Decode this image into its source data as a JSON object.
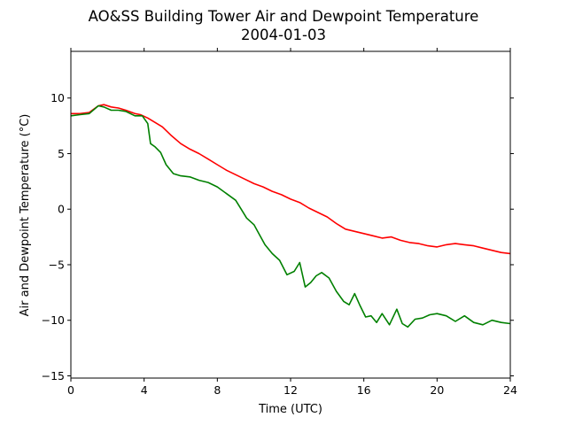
{
  "chart_data": {
    "type": "line",
    "title": "AO&SS Building Tower Air and Dewpoint Temperature",
    "subtitle": "2004-01-03",
    "xlabel": "Time (UTC)",
    "ylabel": "Air and Dewpoint Temperature (°C)",
    "xlim": [
      0,
      24
    ],
    "ylim": [
      -15.2,
      14.2
    ],
    "xticks": [
      0,
      4,
      8,
      12,
      16,
      20,
      24
    ],
    "yticks": [
      -15,
      -10,
      -5,
      0,
      5,
      10
    ],
    "grid": false,
    "legend": "none",
    "series": [
      {
        "color": "#ff0000",
        "x": [
          0,
          0.5,
          1,
          1.5,
          1.8,
          2.2,
          2.6,
          3,
          3.5,
          3.8,
          4.2,
          4.5,
          5,
          5.5,
          6,
          6.5,
          7,
          7.5,
          8,
          8.5,
          9,
          9.5,
          10,
          10.5,
          11,
          11.5,
          12,
          12.5,
          13,
          13.5,
          14,
          14.5,
          15,
          15.5,
          16,
          16.5,
          17,
          17.5,
          18,
          18.5,
          19,
          19.5,
          20,
          20.5,
          21,
          21.5,
          22,
          22.5,
          23,
          23.5,
          24
        ],
        "y": [
          8.6,
          8.6,
          8.7,
          9.3,
          9.4,
          9.2,
          9.1,
          8.9,
          8.6,
          8.5,
          8.2,
          7.9,
          7.4,
          6.6,
          5.9,
          5.4,
          5.0,
          4.5,
          4.0,
          3.5,
          3.1,
          2.7,
          2.3,
          2.0,
          1.6,
          1.3,
          0.9,
          0.6,
          0.1,
          -0.3,
          -0.7,
          -1.3,
          -1.8,
          -2.0,
          -2.2,
          -2.4,
          -2.6,
          -2.5,
          -2.8,
          -3.0,
          -3.1,
          -3.3,
          -3.4,
          -3.2,
          -3.1,
          -3.2,
          -3.3,
          -3.5,
          -3.7,
          -3.9,
          -4.0
        ]
      },
      {
        "color": "#008000",
        "x": [
          0,
          0.5,
          1,
          1.5,
          1.8,
          2.2,
          2.6,
          3,
          3.5,
          3.9,
          4.2,
          4.35,
          4.6,
          4.9,
          5.2,
          5.6,
          6,
          6.5,
          7,
          7.5,
          8,
          8.5,
          9,
          9.3,
          9.6,
          10,
          10.3,
          10.6,
          11,
          11.4,
          11.8,
          12.2,
          12.5,
          12.8,
          13.1,
          13.4,
          13.7,
          14.1,
          14.5,
          14.9,
          15.2,
          15.5,
          15.8,
          16.1,
          16.4,
          16.7,
          17,
          17.4,
          17.8,
          18.1,
          18.4,
          18.8,
          19.2,
          19.6,
          20,
          20.5,
          21,
          21.5,
          22,
          22.5,
          23,
          23.5,
          24
        ],
        "y": [
          8.4,
          8.5,
          8.6,
          9.3,
          9.2,
          8.9,
          8.9,
          8.8,
          8.4,
          8.4,
          7.7,
          5.9,
          5.6,
          5.1,
          4.0,
          3.2,
          3.0,
          2.9,
          2.6,
          2.4,
          2.0,
          1.4,
          0.8,
          0.0,
          -0.8,
          -1.4,
          -2.3,
          -3.2,
          -4.0,
          -4.6,
          -5.9,
          -5.6,
          -4.8,
          -7.0,
          -6.6,
          -6.0,
          -5.7,
          -6.2,
          -7.4,
          -8.3,
          -8.6,
          -7.6,
          -8.7,
          -9.7,
          -9.6,
          -10.2,
          -9.4,
          -10.4,
          -9.0,
          -10.3,
          -10.6,
          -9.9,
          -9.8,
          -9.5,
          -9.4,
          -9.6,
          -10.1,
          -9.6,
          -10.2,
          -10.4,
          -10.0,
          -10.2,
          -10.3
        ]
      }
    ]
  }
}
